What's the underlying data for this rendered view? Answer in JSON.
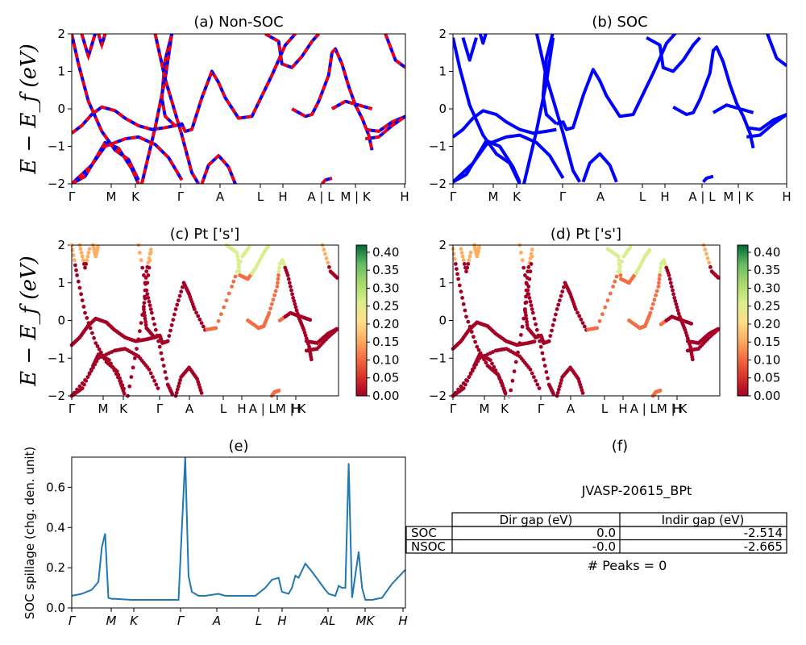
{
  "figure_title": "JVASP-20615_BPt",
  "colors": {
    "blue": "#0000ff",
    "red": "#ff0000",
    "spillage": "#1f77b4"
  },
  "colormap": "RdYlGn",
  "chart_data": [
    {
      "id": "a",
      "type": "line",
      "title": "(a) Non-SOC",
      "ylabel": "E − E_f (eV)",
      "ylim": [
        -2,
        2
      ],
      "yticks": [
        "−2",
        "−1",
        "0",
        "1",
        "2"
      ],
      "xticks": [
        "Γ",
        "M",
        "K",
        "Γ",
        "A",
        "L",
        "H",
        "A | L",
        "M | K",
        "H"
      ],
      "series": [
        {
          "name": "",
          "style": "blue solid + red dashed",
          "points": [
            [
              0,
              -0.65
            ],
            [
              0.05,
              -0.25
            ],
            [
              0.1,
              0.1
            ],
            [
              0.2,
              -0.3
            ],
            [
              0.3,
              -0.55
            ],
            [
              0.4,
              -0.5
            ],
            [
              0.5,
              -0.5
            ],
            [
              0.6,
              -0.65
            ],
            [
              0.7,
              0
            ],
            [
              0.9,
              -0.7
            ],
            [
              1,
              0.3
            ],
            [
              1.2,
              1.5
            ],
            [
              1.4,
              2
            ]
          ]
        },
        {
          "name": "",
          "points": [
            [
              0,
              -0.65
            ],
            [
              0.1,
              -0.85
            ],
            [
              0.2,
              -1.2
            ],
            [
              0.3,
              -0.95
            ],
            [
              0.4,
              -0.75
            ],
            [
              0.5,
              -0.9
            ],
            [
              0.6,
              -1.4
            ],
            [
              0.7,
              -1.9
            ]
          ]
        },
        {
          "name": "",
          "points": [
            [
              2.2,
              -1.1
            ],
            [
              2.6,
              -0.4
            ],
            [
              3,
              -0.1
            ],
            [
              3.3,
              -0.15
            ],
            [
              3.6,
              -0.05
            ]
          ]
        },
        {
          "name": "",
          "points": [
            [
              2.2,
              1.1
            ],
            [
              2.6,
              0.7
            ],
            [
              3,
              0.5
            ],
            [
              3.3,
              0.6
            ],
            [
              3.6,
              0.8
            ]
          ]
        }
      ]
    },
    {
      "id": "b",
      "type": "line",
      "title": "(b) SOC",
      "ylim": [
        -2,
        2
      ],
      "yticks": [
        "−2",
        "−1",
        "0",
        "1",
        "2"
      ],
      "xticks": [
        "Γ",
        "M",
        "K",
        "Γ",
        "A",
        "L",
        "H",
        "A | L",
        "M | K",
        "H"
      ]
    },
    {
      "id": "c",
      "type": "scatter",
      "title": "(c)  Pt ['s']",
      "ylabel": "E − E_f (eV)",
      "ylim": [
        -2,
        2
      ],
      "yticks": [
        "−2",
        "−1",
        "0",
        "1",
        "2"
      ],
      "xticks": [
        "Γ",
        "M",
        "K",
        "Γ",
        "A",
        "L",
        "H",
        "A | LM | K",
        "H"
      ],
      "colorbar": {
        "min": 0.0,
        "max": 0.4,
        "ticks": [
          "0.00",
          "0.05",
          "0.10",
          "0.15",
          "0.20",
          "0.25",
          "0.30",
          "0.35",
          "0.40"
        ]
      }
    },
    {
      "id": "d",
      "type": "scatter",
      "title": "(d) Pt ['s']",
      "ylim": [
        -2,
        2
      ],
      "yticks": [
        "−2",
        "−1",
        "0",
        "1",
        "2"
      ],
      "xticks": [
        "Γ",
        "M",
        "K",
        "Γ",
        "A",
        "L",
        "H",
        "A | LM | K",
        "H"
      ],
      "colorbar": {
        "min": 0.0,
        "max": 0.4,
        "ticks": [
          "0.00",
          "0.05",
          "0.10",
          "0.15",
          "0.20",
          "0.25",
          "0.30",
          "0.35",
          "0.40"
        ]
      }
    },
    {
      "id": "e",
      "type": "line",
      "title": "(e)",
      "ylabel": "SOC spillage (chg. den. unit)",
      "ylim": [
        0,
        0.75
      ],
      "yticks": [
        "0.0",
        "0.2",
        "0.4",
        "0.6"
      ],
      "xticks": [
        "Γ",
        "M",
        "K",
        "Γ",
        "A",
        "L",
        "H",
        "AL",
        "MK",
        "H"
      ],
      "series": [
        {
          "name": "",
          "x": [
            0,
            0.03,
            0.06,
            0.08,
            0.09,
            0.1,
            0.11,
            0.12,
            0.13,
            0.18,
            0.19,
            0.2,
            0.22,
            0.23,
            0.3,
            0.32,
            0.34,
            0.35,
            0.36,
            0.38,
            0.4,
            0.44,
            0.46,
            0.5,
            0.55,
            0.58,
            0.6,
            0.62,
            0.63,
            0.65,
            0.66,
            0.67,
            0.68,
            0.7,
            0.72,
            0.76,
            0.77,
            0.78,
            0.79,
            0.8,
            0.81,
            0.82,
            0.83,
            0.84,
            0.86,
            0.87,
            0.88,
            0.9,
            0.93,
            0.96,
            1.0
          ],
          "values": [
            0.06,
            0.07,
            0.09,
            0.13,
            0.3,
            0.37,
            0.05,
            0.045,
            0.045,
            0.04,
            0.04,
            0.04,
            0.04,
            0.04,
            0.04,
            0.04,
            0.75,
            0.16,
            0.08,
            0.06,
            0.06,
            0.07,
            0.06,
            0.06,
            0.06,
            0.1,
            0.14,
            0.15,
            0.08,
            0.07,
            0.1,
            0.16,
            0.15,
            0.22,
            0.18,
            0.09,
            0.07,
            0.065,
            0.06,
            0.11,
            0.1,
            0.1,
            0.72,
            0.05,
            0.28,
            0.1,
            0.04,
            0.04,
            0.05,
            0.12,
            0.19
          ]
        }
      ]
    },
    {
      "id": "f",
      "type": "table",
      "title": "(f)",
      "columns": [
        "Dir gap (eV)",
        "Indir gap (eV)"
      ],
      "rows": [
        {
          "label": "SOC",
          "values": [
            "0.0",
            "-2.514"
          ]
        },
        {
          "label": "NSOC",
          "values": [
            "-0.0",
            "-2.665"
          ]
        }
      ],
      "note": "# Peaks = 0"
    }
  ]
}
